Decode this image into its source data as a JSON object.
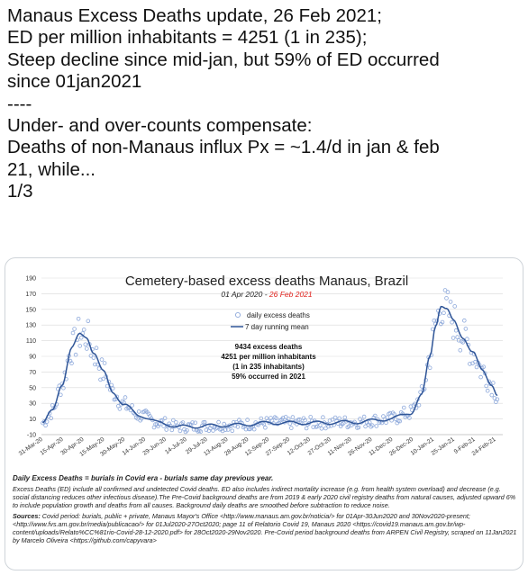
{
  "tweet": {
    "lines": [
      "Manaus Excess Deaths update, 26 Feb 2021;",
      "ED per million inhabitants = 4251 (1 in 235);",
      "Steep decline since mid-jan, but 59% of ED occurred",
      "since 01jan2021",
      "----",
      "Under- and over-counts compensate:",
      "Deaths of non-Manaus influx Px = ~1.4/d in jan & feb",
      "21, while...",
      "1/3"
    ]
  },
  "chart_data": {
    "type": "line",
    "title": "Cemetery-based excess deaths Manaus, Brazil",
    "subtitle_start": "01 Apr 2020 - ",
    "subtitle_end": "26 Feb 2021",
    "ylim": [
      -10,
      190
    ],
    "y_ticks": [
      -10,
      10,
      30,
      50,
      70,
      90,
      110,
      130,
      150,
      170,
      190
    ],
    "x_tick_labels": [
      "31-Mar-20",
      "15-Apr-20",
      "30-Apr-20",
      "15-May-20",
      "30-May-20",
      "14-Jun-20",
      "29-Jun-20",
      "14-Jul-20",
      "29-Jul-20",
      "13-Aug-20",
      "28-Aug-20",
      "12-Sep-20",
      "27-Sep-20",
      "12-Oct-20",
      "27-Oct-20",
      "11-Nov-20",
      "26-Nov-20",
      "11-Dec-20",
      "26-Dec-20",
      "10-Jan-21",
      "25-Jan-21",
      "9-Feb-21",
      "24-Feb-21"
    ],
    "x_tick_labels_alt": [
      "31-Mar-20",
      "15-Apr-20",
      "30-Apr-20",
      "15-May-20",
      "30-May-20",
      "14-Jun-20",
      "29-Jun-20",
      "14-Jul-20",
      "29-Jul-20",
      "13-Aug-20",
      "28-Aug-20",
      "12-Sep-20",
      "27-Sep-20",
      "12-Oct-20",
      "27-Oct-20",
      "11-Nov-20",
      "26-Nov-20",
      "11-Dec-20",
      "26-Dec-20",
      "10-Jan-21",
      "25-Jan-21",
      "9-Feb-21",
      "24-Feb-21"
    ],
    "x_days_start": "2020-03-31",
    "x_days_end": "2021-03-02",
    "series": [
      {
        "name": "daily excess deaths",
        "style": "markers",
        "color": "#8ea9db"
      },
      {
        "name": "7 day running mean",
        "style": "line",
        "color": "#2f5597"
      }
    ],
    "anchor_points": [
      {
        "date": "2020-04-01",
        "value": 5
      },
      {
        "date": "2020-04-08",
        "value": 20
      },
      {
        "date": "2020-04-15",
        "value": 55
      },
      {
        "date": "2020-04-22",
        "value": 100
      },
      {
        "date": "2020-04-28",
        "value": 118
      },
      {
        "date": "2020-05-03",
        "value": 115
      },
      {
        "date": "2020-05-08",
        "value": 95
      },
      {
        "date": "2020-05-15",
        "value": 70
      },
      {
        "date": "2020-05-22",
        "value": 45
      },
      {
        "date": "2020-05-30",
        "value": 28
      },
      {
        "date": "2020-06-10",
        "value": 15
      },
      {
        "date": "2020-06-25",
        "value": 5
      },
      {
        "date": "2020-07-10",
        "value": 0
      },
      {
        "date": "2020-08-15",
        "value": 2
      },
      {
        "date": "2020-09-15",
        "value": 5
      },
      {
        "date": "2020-10-15",
        "value": 5
      },
      {
        "date": "2020-11-15",
        "value": 6
      },
      {
        "date": "2020-12-10",
        "value": 10
      },
      {
        "date": "2020-12-25",
        "value": 18
      },
      {
        "date": "2021-01-02",
        "value": 40
      },
      {
        "date": "2021-01-08",
        "value": 90
      },
      {
        "date": "2021-01-12",
        "value": 130
      },
      {
        "date": "2021-01-16",
        "value": 155
      },
      {
        "date": "2021-01-20",
        "value": 150
      },
      {
        "date": "2021-01-25",
        "value": 135
      },
      {
        "date": "2021-02-01",
        "value": 115
      },
      {
        "date": "2021-02-08",
        "value": 95
      },
      {
        "date": "2021-02-15",
        "value": 72
      },
      {
        "date": "2021-02-22",
        "value": 55
      },
      {
        "date": "2021-02-26",
        "value": 40
      }
    ],
    "legend": {
      "markers_label": "daily excess deaths",
      "line_label": "7 day running mean",
      "position": "center"
    },
    "annotation_lines": [
      "9434 excess deaths",
      "4251 per million inhabitants",
      "(1 in 235 inhabitants)",
      "59% occurred in 2021"
    ],
    "colors": {
      "markers": "#8ea9db",
      "line": "#2f5597",
      "red_date": "#e0201b",
      "grid": "#d9d9d9"
    }
  },
  "caption": {
    "title": "Daily Excess Deaths = burials in Covid era - burials same day previous year.",
    "body": "Excess Deaths (ED) include all confirmed and undetected Covid deaths. ED also includes indirect mortality increase (e.g. from health system overload) and decrease (e.g. social distancing reduces other infectious disease).The Pre-Covid background deaths are from 2019 & early 2020 civil registry deaths from natural causes, adjusted upward 6% to include population growth and deaths from all causes. Background daily deaths are smoothed before subtraction to reduce noise.",
    "sources_label": "Sources:",
    "sources": " Covid period: burials, public + private, Manaus Mayor's Office <http://www.manaus.am.gov.br/noticia/> for 01Apr-30Jun2020 and 30Nov2020-present; <http://www.fvs.am.gov.br/media/publicacao/> for 01Jul2020-27Oct2020; page 11 of Relatorio Covid 19, Manaus 2020 <https://covid19.manaus.am.gov.br/wp-content/uploads/Relato%CC%81rio-Covid-28-12-2020.pdf> for 28Oct2020-29Nov2020.  Pre-Covid period background deaths from ARPEN Civil Registry, scraped on 11Jan2021 by Marcelo Oliveira <https://github.com/capyvara>"
  }
}
